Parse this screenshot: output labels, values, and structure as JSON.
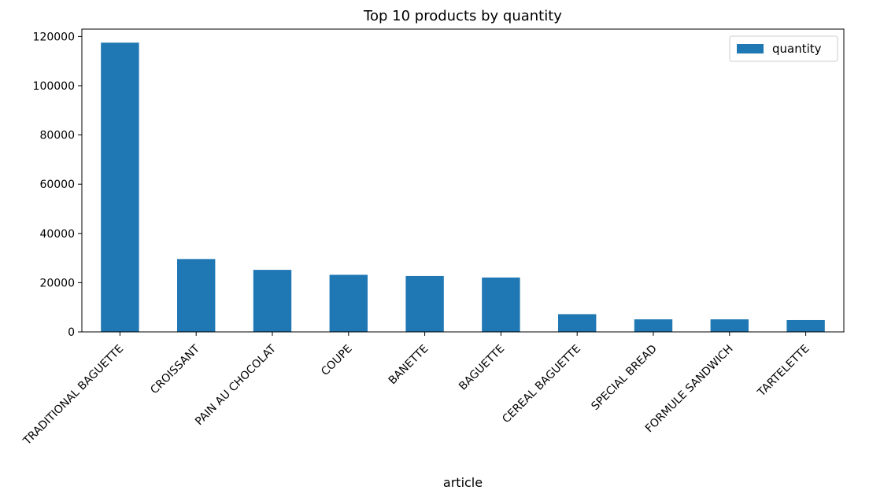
{
  "chart_data": {
    "type": "bar",
    "title": "Top 10 products by quantity",
    "xlabel": "article",
    "ylabel": "",
    "categories": [
      "TRADITIONAL BAGUETTE",
      "CROISSANT",
      "PAIN AU CHOCOLAT",
      "COUPE",
      "BANETTE",
      "BAGUETTE",
      "CEREAL BAGUETTE",
      "SPECIAL BREAD",
      "FORMULE SANDWICH",
      "TARTELETTE"
    ],
    "series": [
      {
        "name": "quantity",
        "values": [
          117500,
          29600,
          25200,
          23200,
          22700,
          22100,
          7200,
          5100,
          5100,
          4800
        ]
      }
    ],
    "ylim": [
      0,
      123000
    ],
    "yticks": [
      0,
      20000,
      40000,
      60000,
      80000,
      100000,
      120000
    ],
    "grid": false,
    "legend": "top-right",
    "color": "#1f77b4"
  }
}
